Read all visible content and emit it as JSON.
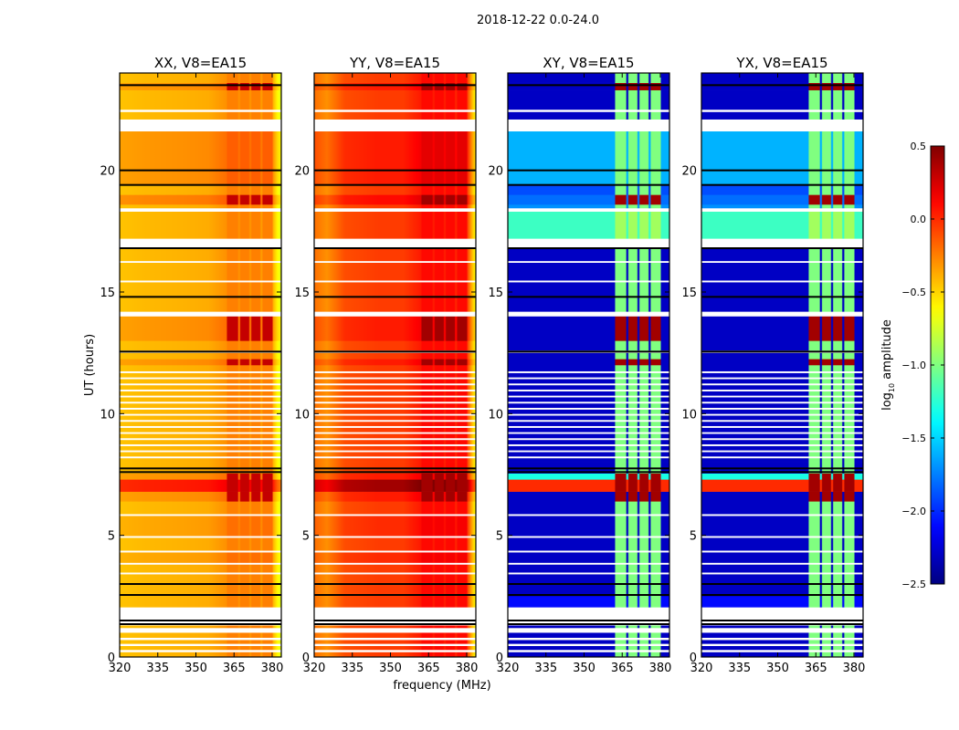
{
  "chart_data": {
    "type": "heatmap",
    "title": "2018-12-22 0.0-24.0",
    "xlabel": "frequency (MHz)",
    "ylabel": "UT (hours)",
    "xlim": [
      320,
      383.6
    ],
    "ylim": [
      0,
      24
    ],
    "xticks": [
      "320",
      "335",
      "350",
      "365",
      "380"
    ],
    "xtick_values": [
      320,
      335,
      350,
      365,
      380
    ],
    "yticks": [
      "0",
      "5",
      "10",
      "15",
      "20"
    ],
    "ytick_values": [
      0,
      5,
      10,
      15,
      20
    ],
    "colorbar": {
      "label_prefix": "log",
      "label_sub": "10",
      "label_suffix": " amplitude",
      "range": [
        -2.5,
        0.5
      ],
      "ticks": [
        "0.5",
        "0.0",
        "−0.5",
        "−1.0",
        "−1.5",
        "−2.0",
        "−2.5"
      ],
      "tick_values": [
        0.5,
        0.0,
        -0.5,
        -1.0,
        -1.5,
        -2.0,
        -2.5
      ],
      "colormap": "jet"
    },
    "spws": [
      [
        362,
        366.4
      ],
      [
        367.2,
        371
      ],
      [
        371.7,
        375.4
      ],
      [
        376.1,
        380
      ]
    ],
    "panels": [
      {
        "title": "XX, V8=EA15",
        "cross": false,
        "freqs": [
          320,
          330,
          345,
          355,
          362,
          370,
          380,
          382,
          384
        ],
        "values": [
          -0.45,
          -0.42,
          -0.4,
          -0.38,
          -0.3,
          -0.3,
          -0.35,
          -0.6,
          -0.75
        ],
        "spw_value": -0.25,
        "peak_value": 0.3
      },
      {
        "title": "YY, V8=EA15",
        "cross": false,
        "freqs": [
          320,
          325,
          332,
          345,
          355,
          362,
          370,
          380,
          382,
          384
        ],
        "values": [
          -0.2,
          -0.3,
          -0.1,
          -0.05,
          -0.05,
          0.05,
          0.05,
          0.0,
          -0.4,
          -0.7
        ],
        "spw_value": 0.1,
        "peak_value": 0.4
      },
      {
        "title": "XY, V8=EA15",
        "cross": true,
        "freqs": [
          320,
          361,
          384
        ],
        "values": [
          -2.3,
          -2.3,
          -2.3
        ],
        "spw_value": -1.0,
        "peak_value": 0.4
      },
      {
        "title": "YX, V8=EA15",
        "cross": true,
        "freqs": [
          320,
          361,
          384
        ],
        "values": [
          -2.3,
          -2.3,
          -2.3
        ],
        "spw_value": -1.0,
        "peak_value": 0.4
      }
    ],
    "segments": [
      [
        0,
        0.2,
        "ok",
        0,
        null,
        0
      ],
      [
        0.2,
        0.3,
        "flag"
      ],
      [
        0.3,
        0.45,
        "ok",
        0,
        null,
        0
      ],
      [
        0.45,
        0.55,
        "flag"
      ],
      [
        0.55,
        0.7,
        "ok",
        0,
        null,
        0
      ],
      [
        0.7,
        0.8,
        "flag"
      ],
      [
        0.8,
        1.0,
        "ok",
        0,
        null,
        0
      ],
      [
        1.0,
        1.2,
        "flag"
      ],
      [
        1.2,
        1.3,
        "ok",
        0,
        null,
        0
      ],
      [
        1.3,
        2.05,
        "flag"
      ],
      [
        2.05,
        2.5,
        "ok",
        0,
        -2.1,
        0
      ],
      [
        2.5,
        3.0,
        "ok",
        0,
        null,
        0
      ],
      [
        3.0,
        3.4,
        "ok",
        0,
        null,
        0
      ],
      [
        3.4,
        3.48,
        "flag"
      ],
      [
        3.48,
        3.8,
        "ok",
        0,
        null,
        0
      ],
      [
        3.8,
        3.88,
        "flag"
      ],
      [
        3.88,
        4.3,
        "ok",
        0.05,
        null,
        0
      ],
      [
        4.3,
        4.38,
        "flag"
      ],
      [
        4.38,
        4.9,
        "ok",
        0,
        null,
        0
      ],
      [
        4.9,
        4.98,
        "flag"
      ],
      [
        4.98,
        5.8,
        "ok",
        0.05,
        null,
        0
      ],
      [
        5.8,
        5.88,
        "flag"
      ],
      [
        5.88,
        6.4,
        "ok",
        0,
        null,
        0
      ],
      [
        6.4,
        6.8,
        "ok",
        0.1,
        null,
        1
      ],
      [
        6.8,
        7.3,
        "ok",
        0.45,
        0.0,
        1
      ],
      [
        7.3,
        7.55,
        "ok",
        0.1,
        -1.3,
        1
      ],
      [
        7.55,
        8.0,
        "ok",
        0,
        null,
        0
      ],
      [
        8.0,
        8.17,
        "ok",
        0,
        null,
        0
      ],
      [
        8.17,
        8.25,
        "flag"
      ],
      [
        8.25,
        8.42,
        "ok",
        0,
        null,
        0
      ],
      [
        8.42,
        8.5,
        "flag"
      ],
      [
        8.5,
        8.67,
        "ok",
        0,
        null,
        0
      ],
      [
        8.67,
        8.75,
        "flag"
      ],
      [
        8.75,
        8.92,
        "ok",
        0,
        null,
        0
      ],
      [
        8.92,
        9.0,
        "flag"
      ],
      [
        9.0,
        9.17,
        "ok",
        0,
        null,
        0
      ],
      [
        9.17,
        9.25,
        "flag"
      ],
      [
        9.25,
        9.42,
        "ok",
        0,
        null,
        0
      ],
      [
        9.42,
        9.5,
        "flag"
      ],
      [
        9.5,
        9.67,
        "ok",
        0,
        null,
        0
      ],
      [
        9.67,
        9.75,
        "flag"
      ],
      [
        9.75,
        9.92,
        "ok",
        0,
        null,
        0
      ],
      [
        9.92,
        10.0,
        "flag"
      ],
      [
        10.0,
        10.17,
        "ok",
        0,
        null,
        0
      ],
      [
        10.17,
        10.25,
        "flag"
      ],
      [
        10.25,
        10.42,
        "ok",
        0,
        null,
        0
      ],
      [
        10.42,
        10.5,
        "flag"
      ],
      [
        10.5,
        10.67,
        "ok",
        0,
        null,
        0
      ],
      [
        10.67,
        10.75,
        "flag"
      ],
      [
        10.75,
        10.92,
        "ok",
        0,
        null,
        0
      ],
      [
        10.92,
        11.0,
        "flag"
      ],
      [
        11.0,
        11.17,
        "ok",
        0,
        null,
        0
      ],
      [
        11.17,
        11.25,
        "flag"
      ],
      [
        11.25,
        11.42,
        "ok",
        0,
        null,
        0
      ],
      [
        11.42,
        11.5,
        "flag"
      ],
      [
        11.5,
        11.67,
        "ok",
        0,
        null,
        0
      ],
      [
        11.67,
        11.75,
        "flag"
      ],
      [
        11.75,
        12.0,
        "ok",
        0,
        null,
        0
      ],
      [
        12.0,
        12.25,
        "ok",
        0.1,
        null,
        1
      ],
      [
        12.25,
        12.5,
        "ok",
        0,
        null,
        0
      ],
      [
        12.5,
        12.6,
        "flag"
      ],
      [
        12.6,
        13.0,
        "ok",
        0,
        null,
        0
      ],
      [
        13.0,
        14.0,
        "ok",
        0.1,
        null,
        1
      ],
      [
        14.0,
        14.2,
        "flag"
      ],
      [
        14.2,
        15.4,
        "ok",
        0,
        null,
        0
      ],
      [
        15.4,
        15.48,
        "flag"
      ],
      [
        15.48,
        16.2,
        "ok",
        0,
        null,
        0
      ],
      [
        16.2,
        16.28,
        "flag"
      ],
      [
        16.28,
        16.8,
        "ok",
        0,
        null,
        0
      ],
      [
        16.8,
        17.2,
        "flag"
      ],
      [
        17.2,
        18.3,
        "ok",
        0,
        -1.2,
        0
      ],
      [
        18.3,
        18.45,
        "flag"
      ],
      [
        18.45,
        18.6,
        "ok",
        0,
        -1.7,
        0
      ],
      [
        18.6,
        19.0,
        "ok",
        0.15,
        -1.8,
        1
      ],
      [
        19.0,
        19.4,
        "ok",
        0,
        -1.9,
        0
      ],
      [
        19.4,
        21.6,
        "ok",
        0.1,
        -1.6,
        0
      ],
      [
        21.6,
        22.1,
        "flag"
      ],
      [
        22.1,
        22.4,
        "ok",
        0,
        null,
        0
      ],
      [
        22.4,
        22.5,
        "flag"
      ],
      [
        22.5,
        23.3,
        "ok",
        0,
        null,
        0
      ],
      [
        23.3,
        23.6,
        "ok",
        0.1,
        null,
        1
      ],
      [
        23.6,
        24.0,
        "ok",
        0,
        null,
        0
      ]
    ],
    "black_lines": [
      23.5,
      20.0,
      19.4,
      16.8,
      14.8,
      12.55,
      7.75,
      7.6,
      3.0,
      2.55,
      1.5,
      1.35
    ]
  }
}
